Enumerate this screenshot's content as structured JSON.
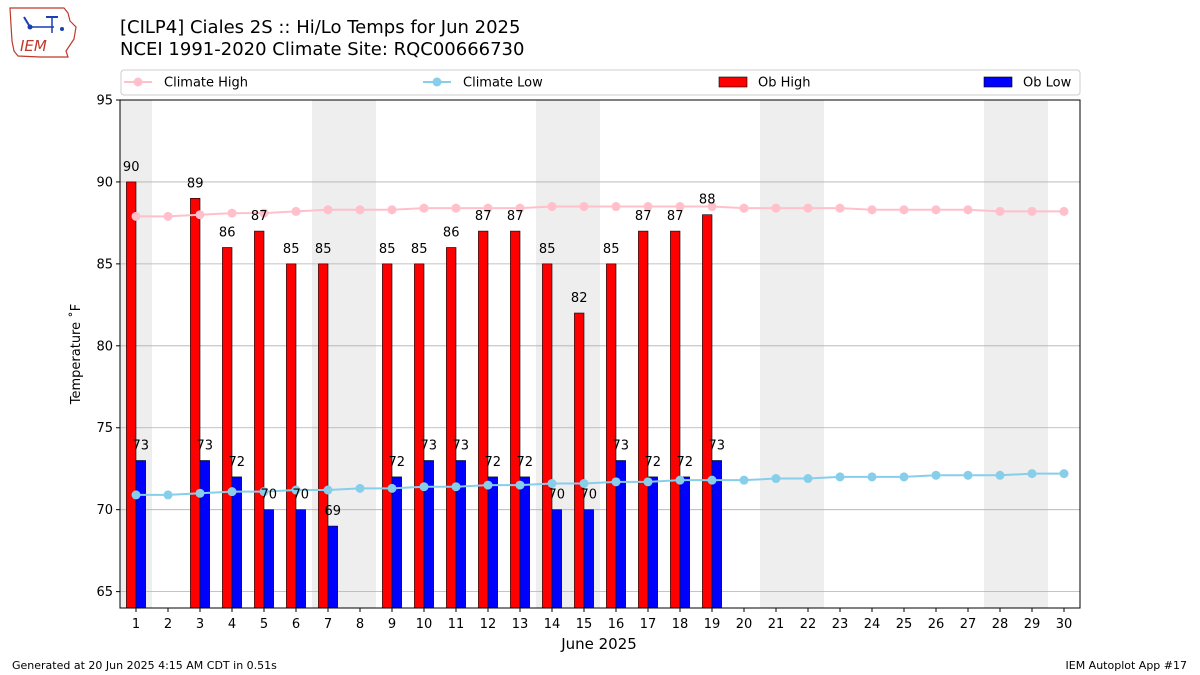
{
  "header": {
    "title_line1": "[CILP4] Ciales 2S :: Hi/Lo Temps for Jun 2025",
    "title_line2": "NCEI 1991-2020 Climate Site: RQC00666730",
    "logo_text": "IEM"
  },
  "footer": {
    "generated": "Generated at 20 Jun 2025 4:15 AM CDT in 0.51s",
    "app": "IEM Autoplot App #17"
  },
  "colors": {
    "ob_high": "#ff0000",
    "ob_low": "#0000ff",
    "climate_high": "#ffc0cb",
    "climate_low": "#87ceeb",
    "weekend_band": "#eeeeee",
    "grid": "#b0b0b0"
  },
  "chart_data": {
    "type": "bar",
    "xlabel": "June 2025",
    "ylabel": "Temperature ˚F",
    "ylim": [
      64,
      95
    ],
    "yticks": [
      65,
      70,
      75,
      80,
      85,
      90,
      95
    ],
    "grid": true,
    "legend_position": "top",
    "categories": [
      "1",
      "2",
      "3",
      "4",
      "5",
      "6",
      "7",
      "8",
      "9",
      "10",
      "11",
      "12",
      "13",
      "14",
      "15",
      "16",
      "17",
      "18",
      "19",
      "20",
      "21",
      "22",
      "23",
      "24",
      "25",
      "26",
      "27",
      "28",
      "29",
      "30"
    ],
    "shaded_days": [
      1,
      7,
      8,
      14,
      15,
      21,
      22,
      28,
      29
    ],
    "series": [
      {
        "name": "Ob High",
        "kind": "bar",
        "values": [
          90,
          null,
          89,
          86,
          87,
          85,
          85,
          null,
          85,
          85,
          86,
          87,
          87,
          85,
          82,
          85,
          87,
          87,
          88,
          null,
          null,
          null,
          null,
          null,
          null,
          null,
          null,
          null,
          null,
          null
        ]
      },
      {
        "name": "Ob Low",
        "kind": "bar",
        "values": [
          73,
          null,
          73,
          72,
          70,
          70,
          69,
          null,
          72,
          73,
          73,
          72,
          72,
          70,
          70,
          73,
          72,
          72,
          73,
          null,
          null,
          null,
          null,
          null,
          null,
          null,
          null,
          null,
          null,
          null
        ]
      },
      {
        "name": "Climate High",
        "kind": "line",
        "values": [
          87.9,
          87.9,
          88.0,
          88.1,
          88.1,
          88.2,
          88.3,
          88.3,
          88.3,
          88.4,
          88.4,
          88.4,
          88.4,
          88.5,
          88.5,
          88.5,
          88.5,
          88.5,
          88.5,
          88.4,
          88.4,
          88.4,
          88.4,
          88.3,
          88.3,
          88.3,
          88.3,
          88.2,
          88.2,
          88.2
        ]
      },
      {
        "name": "Climate Low",
        "kind": "line",
        "values": [
          70.9,
          70.9,
          71.0,
          71.1,
          71.1,
          71.2,
          71.2,
          71.3,
          71.3,
          71.4,
          71.4,
          71.5,
          71.5,
          71.6,
          71.6,
          71.7,
          71.7,
          71.8,
          71.8,
          71.8,
          71.9,
          71.9,
          72.0,
          72.0,
          72.0,
          72.1,
          72.1,
          72.1,
          72.2,
          72.2
        ]
      }
    ]
  }
}
